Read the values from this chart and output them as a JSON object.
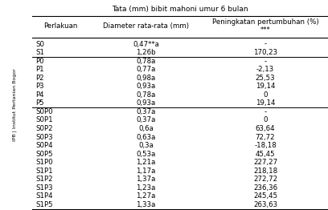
{
  "title": "Tata (mm) bibit mahoni umur 6 bulan",
  "col1_header": "Perlakuan",
  "col2_header": "Diameter rata-rata (mm)",
  "col3_header": "Peningkatan pertumbuhan (%)\n***",
  "rows": [
    [
      "S0",
      "0,47**a",
      "-"
    ],
    [
      "S1",
      "1,26b",
      "170,23"
    ],
    [
      "P0",
      "0,78a",
      "-"
    ],
    [
      "P1",
      "0,77a",
      "-2,13"
    ],
    [
      "P2",
      "0,98a",
      "25,53"
    ],
    [
      "P3",
      "0,93a",
      "19,14"
    ],
    [
      "P4",
      "0,78a",
      "0"
    ],
    [
      "P5",
      "0,93a",
      "19,14"
    ],
    [
      "S0P0",
      "0,37a",
      "-"
    ],
    [
      "S0P1",
      "0,37a",
      "0"
    ],
    [
      "S0P2",
      "0,6a",
      "63,64"
    ],
    [
      "S0P3",
      "0,63a",
      "72,72"
    ],
    [
      "S0P4",
      "0,3a",
      "-18,18"
    ],
    [
      "S0P5",
      "0,53a",
      "45,45"
    ],
    [
      "S1P0",
      "1,21a",
      "227,27"
    ],
    [
      "S1P1",
      "1,17a",
      "218,18"
    ],
    [
      "S1P2",
      "1,37a",
      "272,72"
    ],
    [
      "S1P3",
      "1,23a",
      "236,36"
    ],
    [
      "S1P4",
      "1,27a",
      "245,45"
    ],
    [
      "S1P5",
      "1,33a",
      "263,63"
    ]
  ],
  "group_separators": [
    2,
    8
  ],
  "bg_color": "#ffffff",
  "text_color": "#000000",
  "font_size": 6.2,
  "header_font_size": 6.2,
  "title_font_size": 6.5,
  "sidebar_text": "IPB | Institut Pertanian Bogor",
  "sidebar_color": "#bbbbbb"
}
